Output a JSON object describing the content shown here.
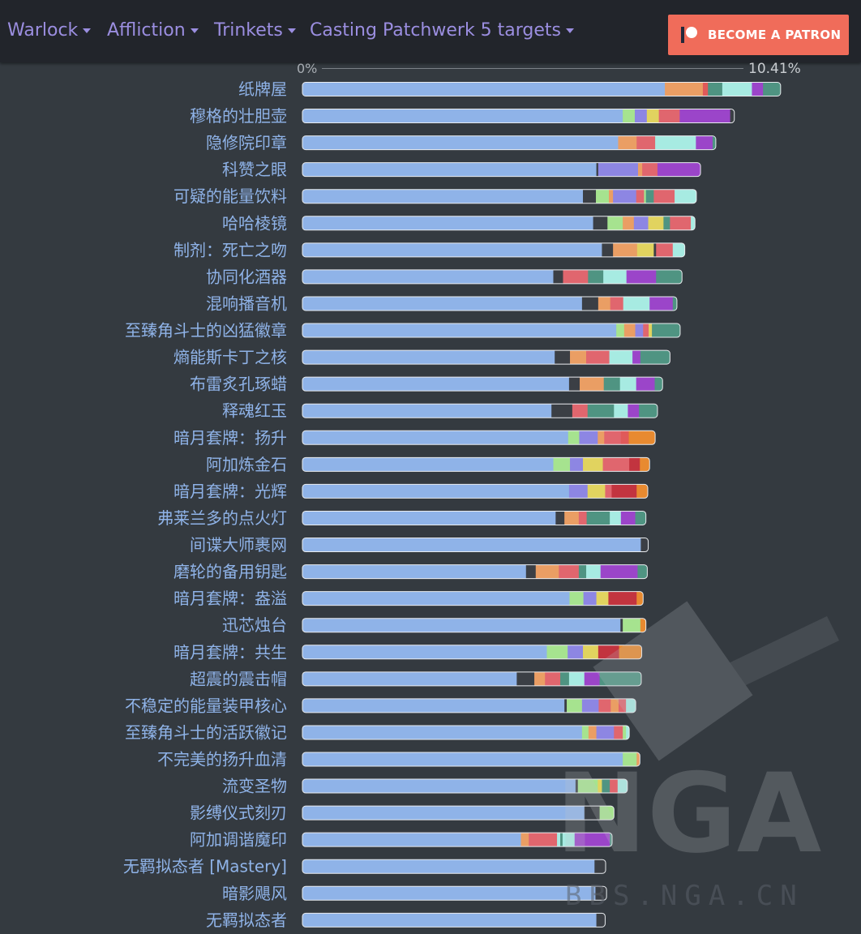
{
  "nav": {
    "items": [
      {
        "label": "Warlock"
      },
      {
        "label": "Affliction"
      },
      {
        "label": "Trinkets"
      },
      {
        "label": "Casting Patchwerk 5 targets"
      }
    ],
    "patron_label": "BECOME A PATRON"
  },
  "watermark": "BBS.NGA.CN",
  "chart_data": {
    "type": "bar",
    "orientation": "horizontal",
    "stacked": true,
    "xlim": [
      "0%",
      "10.41%"
    ],
    "x_min_label": "0%",
    "x_max_label": "10.41%",
    "x_max_unit": "%",
    "colors": [
      "#8fb3e8",
      "#3b3f45",
      "#a6e38f",
      "#ea9e64",
      "#e0666e",
      "#8d86e3",
      "#e1d35f",
      "#a7ebe2",
      "#e05a5a",
      "#4f9482",
      "#9b45c9",
      "#e88a30",
      "#c2343f"
    ],
    "categories": [
      "纸牌屋",
      "穆格的壮胆壶",
      "隐修院印章",
      "科赞之眼",
      "可疑的能量饮料",
      "哈哈棱镜",
      "制剂：死亡之吻",
      "协同化酒器",
      "混响播音机",
      "至臻角斗士的凶猛徽章",
      "熵能斯卡丁之核",
      "布雷炙孔琢蜡",
      "释魂红玉",
      "暗月套牌：扬升",
      "阿加炼金石",
      "暗月套牌：光辉",
      "弗莱兰多的点火灯",
      "间谍大师裹网",
      "磨轮的备用钥匙",
      "暗月套牌：盎溢",
      "迅芯烛台",
      "暗月套牌：共生",
      "超震的震击帽",
      "不稳定的能量装甲核心",
      "至臻角斗士的活跃徽记",
      "不完美的扬升血清",
      "流变圣物",
      "影缚仪式刻刃",
      "阿加调谐魔印",
      "无羁拟态者 [Mastery]",
      "暗影飓风",
      "无羁拟态者"
    ],
    "bars": [
      [
        [
          0,
          7.83
        ],
        [
          3,
          0.82
        ],
        [
          8,
          0.11
        ],
        [
          9,
          0.31
        ],
        [
          7,
          0.64
        ],
        [
          10,
          0.24
        ],
        [
          9,
          0.38
        ]
      ],
      [
        [
          0,
          6.92
        ],
        [
          2,
          0.26
        ],
        [
          5,
          0.26
        ],
        [
          6,
          0.26
        ],
        [
          4,
          0.45
        ],
        [
          10,
          1.09
        ],
        [
          1,
          0.09
        ]
      ],
      [
        [
          0,
          6.82
        ],
        [
          3,
          0.4
        ],
        [
          4,
          0.4
        ],
        [
          7,
          0.88
        ],
        [
          10,
          0.36
        ],
        [
          9,
          0.07
        ]
      ],
      [
        [
          0,
          6.35
        ],
        [
          1,
          0.04
        ],
        [
          5,
          0.86
        ],
        [
          3,
          0.09
        ],
        [
          4,
          0.33
        ],
        [
          10,
          0.93
        ]
      ],
      [
        [
          0,
          6.06
        ],
        [
          1,
          0.28
        ],
        [
          2,
          0.28
        ],
        [
          3,
          0.09
        ],
        [
          5,
          0.5
        ],
        [
          4,
          0.17
        ],
        [
          2,
          0.04
        ],
        [
          9,
          0.17
        ],
        [
          4,
          0.45
        ],
        [
          7,
          0.47
        ]
      ],
      [
        [
          0,
          6.28
        ],
        [
          1,
          0.31
        ],
        [
          2,
          0.33
        ],
        [
          3,
          0.24
        ],
        [
          5,
          0.31
        ],
        [
          6,
          0.33
        ],
        [
          9,
          0.14
        ],
        [
          4,
          0.45
        ],
        [
          7,
          0.09
        ]
      ],
      [
        [
          0,
          6.47
        ],
        [
          1,
          0.24
        ],
        [
          3,
          0.52
        ],
        [
          6,
          0.36
        ],
        [
          1,
          0.05
        ],
        [
          4,
          0.36
        ],
        [
          7,
          0.26
        ]
      ],
      [
        [
          0,
          5.42
        ],
        [
          1,
          0.21
        ],
        [
          4,
          0.54
        ],
        [
          9,
          0.33
        ],
        [
          7,
          0.5
        ],
        [
          10,
          0.64
        ],
        [
          9,
          0.56
        ]
      ],
      [
        [
          0,
          6.04
        ],
        [
          1,
          0.35
        ],
        [
          3,
          0.26
        ],
        [
          4,
          0.28
        ],
        [
          7,
          0.57
        ],
        [
          10,
          0.5
        ],
        [
          9,
          0.09
        ]
      ],
      [
        [
          0,
          6.78
        ],
        [
          2,
          0.17
        ],
        [
          3,
          0.24
        ],
        [
          5,
          0.17
        ],
        [
          4,
          0.12
        ],
        [
          6,
          0.07
        ],
        [
          9,
          0.61
        ]
      ],
      [
        [
          0,
          5.45
        ],
        [
          1,
          0.33
        ],
        [
          3,
          0.35
        ],
        [
          4,
          0.5
        ],
        [
          7,
          0.5
        ],
        [
          10,
          0.17
        ],
        [
          9,
          0.64
        ]
      ],
      [
        [
          0,
          5.76
        ],
        [
          1,
          0.23
        ],
        [
          3,
          0.52
        ],
        [
          9,
          0.35
        ],
        [
          7,
          0.35
        ],
        [
          10,
          0.4
        ],
        [
          9,
          0.17
        ]
      ],
      [
        [
          0,
          5.38
        ],
        [
          1,
          0.45
        ],
        [
          4,
          0.33
        ],
        [
          9,
          0.57
        ],
        [
          7,
          0.3
        ],
        [
          10,
          0.24
        ],
        [
          9,
          0.4
        ]
      ],
      [
        [
          0,
          5.74
        ],
        [
          2,
          0.24
        ],
        [
          5,
          0.4
        ],
        [
          3,
          0.14
        ],
        [
          4,
          0.36
        ],
        [
          8,
          0.17
        ],
        [
          11,
          0.57
        ]
      ],
      [
        [
          0,
          5.42
        ],
        [
          2,
          0.36
        ],
        [
          5,
          0.28
        ],
        [
          6,
          0.43
        ],
        [
          4,
          0.57
        ],
        [
          12,
          0.23
        ],
        [
          11,
          0.21
        ]
      ],
      [
        [
          0,
          5.76
        ],
        [
          5,
          0.4
        ],
        [
          6,
          0.38
        ],
        [
          4,
          0.14
        ],
        [
          12,
          0.54
        ],
        [
          11,
          0.24
        ]
      ],
      [
        [
          0,
          5.47
        ],
        [
          1,
          0.19
        ],
        [
          3,
          0.31
        ],
        [
          4,
          0.17
        ],
        [
          9,
          0.5
        ],
        [
          7,
          0.24
        ],
        [
          10,
          0.31
        ],
        [
          9,
          0.23
        ]
      ],
      [
        [
          0,
          7.31
        ],
        [
          1,
          0.16
        ]
      ],
      [
        [
          0,
          4.83
        ],
        [
          1,
          0.21
        ],
        [
          3,
          0.5
        ],
        [
          4,
          0.43
        ],
        [
          9,
          0.16
        ],
        [
          7,
          0.31
        ],
        [
          10,
          0.8
        ],
        [
          9,
          0.21
        ]
      ],
      [
        [
          0,
          5.77
        ],
        [
          2,
          0.3
        ],
        [
          5,
          0.28
        ],
        [
          6,
          0.26
        ],
        [
          12,
          0.61
        ],
        [
          11,
          0.14
        ]
      ],
      [
        [
          0,
          6.87
        ],
        [
          1,
          0.05
        ],
        [
          2,
          0.38
        ],
        [
          11,
          0.12
        ]
      ],
      [
        [
          0,
          5.28
        ],
        [
          2,
          0.45
        ],
        [
          5,
          0.33
        ],
        [
          6,
          0.33
        ],
        [
          12,
          0.45
        ],
        [
          11,
          0.49
        ]
      ],
      [
        [
          0,
          4.63
        ],
        [
          1,
          0.38
        ],
        [
          3,
          0.23
        ],
        [
          4,
          0.33
        ],
        [
          9,
          0.19
        ],
        [
          7,
          0.33
        ],
        [
          10,
          0.33
        ],
        [
          9,
          0.9
        ]
      ],
      [
        [
          0,
          5.66
        ],
        [
          1,
          0.05
        ],
        [
          2,
          0.33
        ],
        [
          5,
          0.36
        ],
        [
          4,
          0.26
        ],
        [
          3,
          0.17
        ],
        [
          4,
          0.16
        ],
        [
          7,
          0.21
        ]
      ],
      [
        [
          0,
          6.04
        ],
        [
          2,
          0.14
        ],
        [
          3,
          0.17
        ],
        [
          5,
          0.38
        ],
        [
          4,
          0.19
        ],
        [
          2,
          0.07
        ],
        [
          7,
          0.07
        ]
      ],
      [
        [
          0,
          6.92
        ],
        [
          2,
          0.3
        ],
        [
          3,
          0.07
        ]
      ],
      [
        [
          0,
          5.9
        ],
        [
          1,
          0.05
        ],
        [
          2,
          0.43
        ],
        [
          6,
          0.09
        ],
        [
          9,
          0.17
        ],
        [
          4,
          0.17
        ],
        [
          7,
          0.21
        ]
      ],
      [
        [
          0,
          6.09
        ],
        [
          1,
          0.33
        ],
        [
          2,
          0.31
        ]
      ],
      [
        [
          0,
          4.72
        ],
        [
          3,
          0.17
        ],
        [
          4,
          0.61
        ],
        [
          7,
          0.07
        ],
        [
          9,
          0.05
        ],
        [
          7,
          0.26
        ],
        [
          10,
          0.76
        ],
        [
          9,
          0.05
        ]
      ],
      [
        [
          0,
          6.31
        ],
        [
          1,
          0.24
        ]
      ],
      [
        [
          0,
          6.33
        ],
        [
          1,
          0.24
        ]
      ],
      [
        [
          0,
          6.35
        ],
        [
          1,
          0.19
        ]
      ]
    ]
  }
}
